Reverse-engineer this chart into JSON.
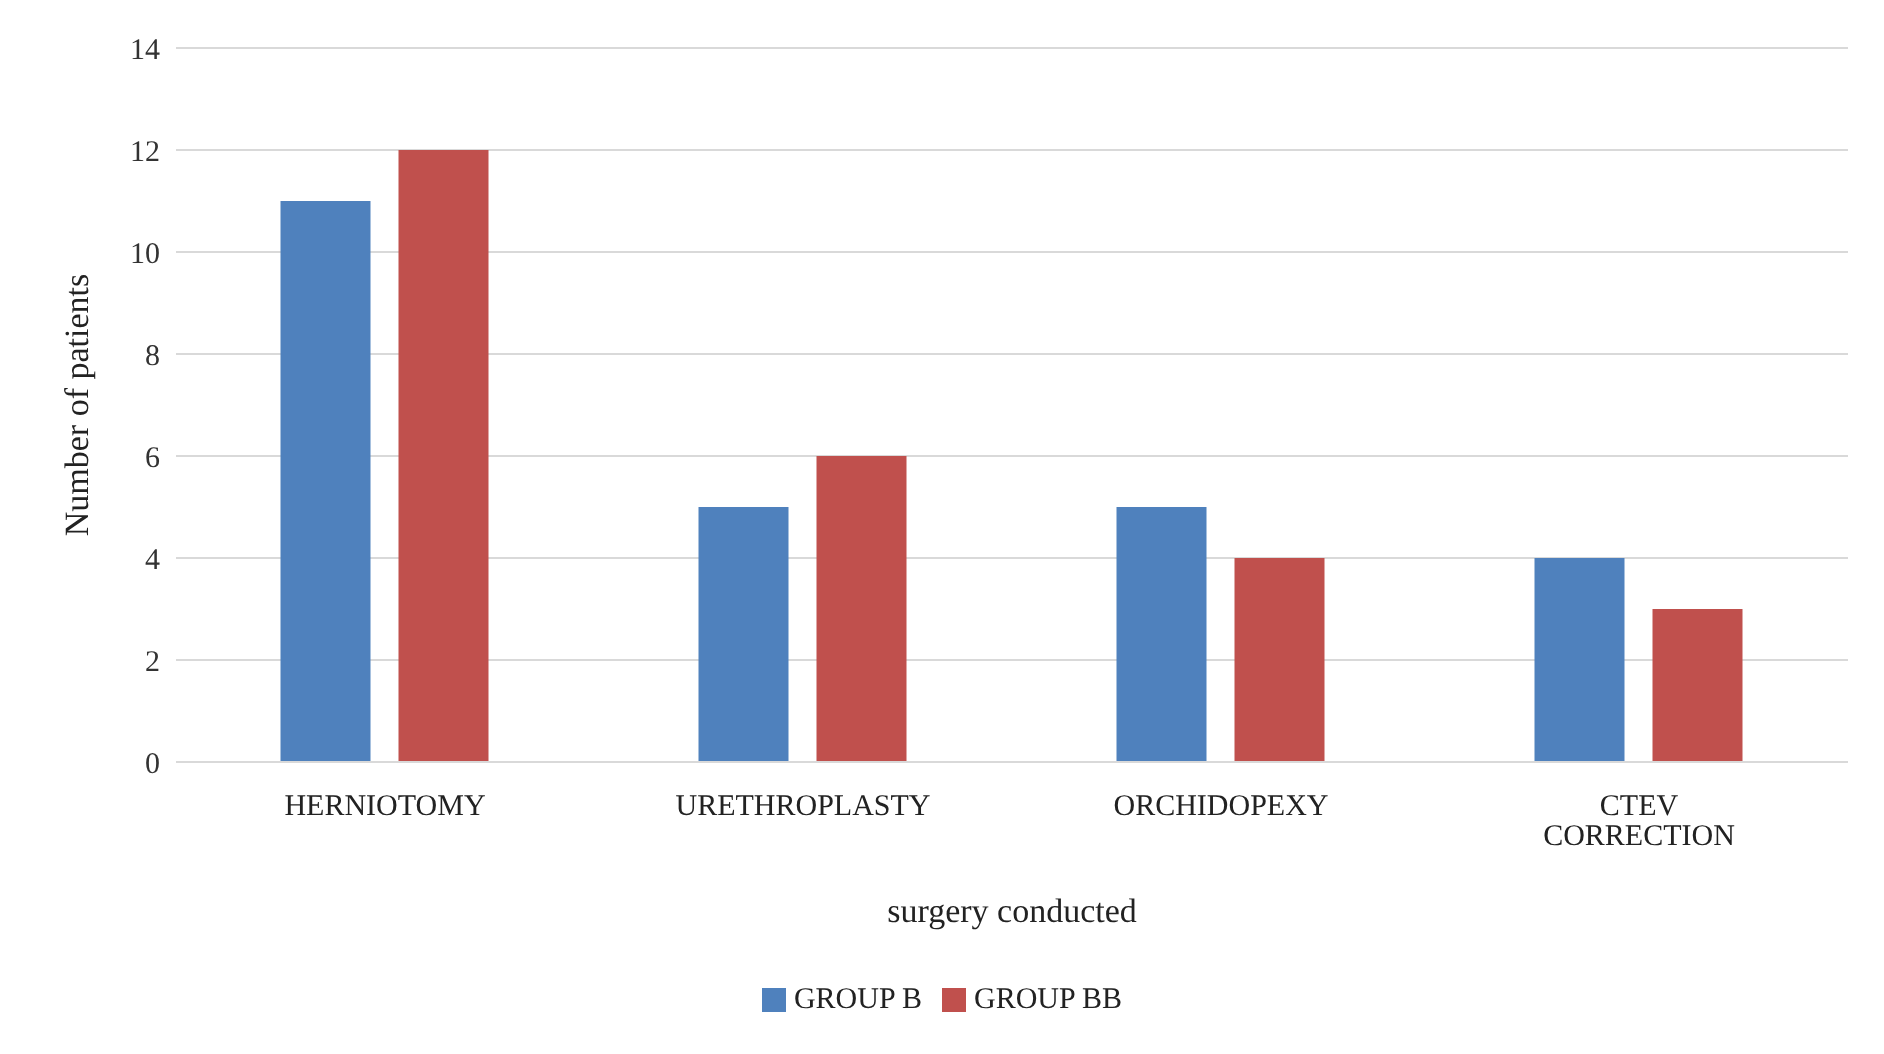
{
  "chart_data": {
    "type": "bar",
    "xlabel": "surgery conducted",
    "ylabel": "Number of patients",
    "categories": [
      "HERNIOTOMY",
      "URETHROPLASTY",
      "ORCHIDOPEXY",
      "CTEV CORRECTION"
    ],
    "series": [
      {
        "name": "GROUP B",
        "color": "#4f81bd",
        "values": [
          11,
          5,
          5,
          4
        ]
      },
      {
        "name": "GROUP BB",
        "color": "#c0504d",
        "values": [
          12,
          6,
          4,
          3
        ]
      }
    ],
    "ylim": [
      0,
      14
    ],
    "yticks": [
      0,
      2,
      4,
      6,
      8,
      10,
      12,
      14
    ],
    "grid": "y",
    "legend": "bottom"
  }
}
